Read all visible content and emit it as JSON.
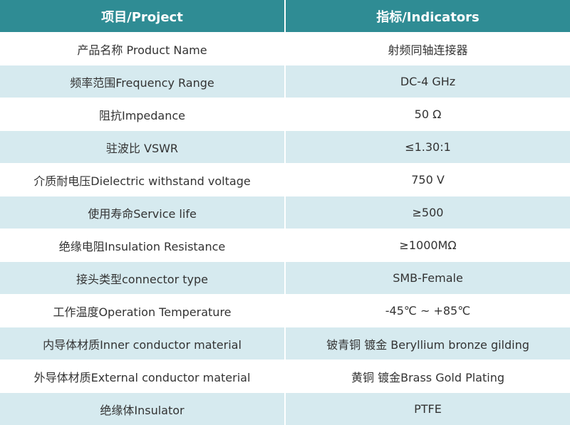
{
  "table": {
    "header": [
      "项目/Project",
      "指标/Indicators"
    ],
    "rows": [
      [
        "产品名称 Product Name",
        "射频同轴连接器"
      ],
      [
        "频率范围Frequency Range",
        "DC-4 GHz"
      ],
      [
        "阻抗Impedance",
        "50 Ω"
      ],
      [
        "驻波比 VSWR",
        "≤1.30:1"
      ],
      [
        "介质耐电压Dielectric withstand voltage",
        "750 V"
      ],
      [
        "使用寿命Service life",
        "≥500"
      ],
      [
        "绝缘电阻Insulation Resistance",
        "≥1000MΩ"
      ],
      [
        "接头类型connector type",
        "SMB-Female"
      ],
      [
        "工作温度Operation Temperature",
        "-45℃ ~ +85℃"
      ],
      [
        "内导体材质Inner conductor material",
        "铍青铜 镀金 Beryllium bronze gilding"
      ],
      [
        "外导体材质External conductor material",
        "黄铜 镀金Brass Gold Plating"
      ],
      [
        "绝缘体Insulator",
        "PTFE"
      ]
    ]
  }
}
